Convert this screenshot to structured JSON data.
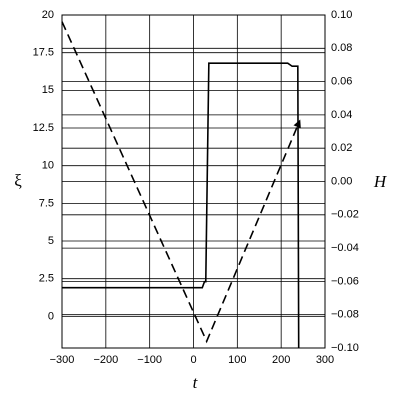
{
  "chart_data": {
    "type": "line",
    "x_label": "t",
    "y_label": "ξ",
    "y2_label": "H",
    "xlim": [
      -300,
      300
    ],
    "xticks": [
      {
        "value": -300,
        "label": "−300"
      },
      {
        "value": -200,
        "label": "−200"
      },
      {
        "value": -100,
        "label": "−100"
      },
      0,
      100,
      200,
      300
    ],
    "ylim": [
      -2.1,
      20
    ],
    "yticks": [
      0,
      2.5,
      5,
      7.5,
      10,
      12.5,
      15,
      17.5,
      20
    ],
    "y2lim": [
      -0.1,
      0.1
    ],
    "y2ticks": [
      {
        "value": -0.1,
        "label": "−0.10"
      },
      {
        "value": -0.08,
        "label": "−0.08"
      },
      {
        "value": -0.06,
        "label": "−0.06"
      },
      {
        "value": -0.04,
        "label": "−0.04"
      },
      {
        "value": -0.02,
        "label": "−0.02"
      },
      {
        "value": 0,
        "label": "0.00"
      },
      {
        "value": 0.02,
        "label": "0.02"
      },
      {
        "value": 0.04,
        "label": "0.04"
      },
      {
        "value": 0.06,
        "label": "0.06"
      },
      {
        "value": 0.08,
        "label": "0.08"
      },
      {
        "value": 0.1,
        "label": "0.10"
      }
    ],
    "grid": true,
    "series": [
      {
        "color": "#000000",
        "dash": false,
        "axis": "y",
        "x": [
          -300,
          20,
          25,
          28,
          35,
          215,
          225,
          238,
          240
        ],
        "values": [
          1.9,
          1.9,
          2.3,
          2.3,
          16.8,
          16.8,
          16.6,
          16.6,
          -2.1
        ]
      },
      {
        "color": "#000000",
        "dash": true,
        "axis": "y2",
        "x": [
          -300,
          30,
          240
        ],
        "values": [
          0.096,
          -0.096,
          0.035
        ]
      }
    ]
  }
}
